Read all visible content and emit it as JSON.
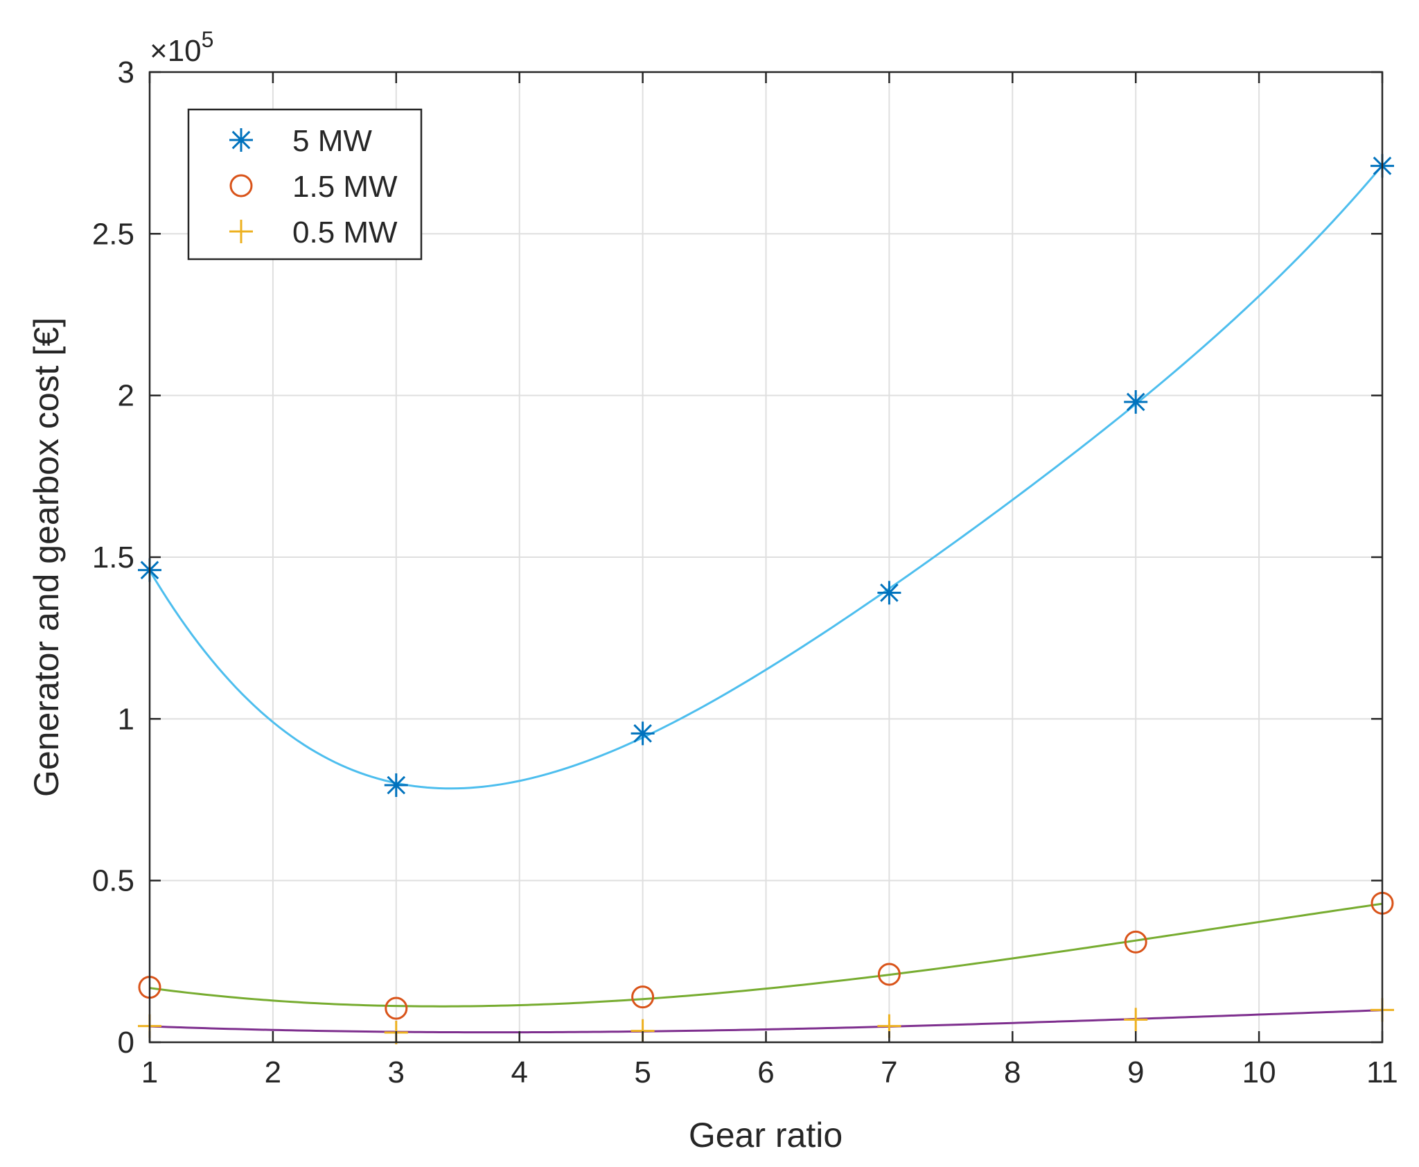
{
  "chart_data": {
    "type": "line",
    "title": "",
    "xlabel": "Gear ratio",
    "ylabel": "Generator and gearbox cost [€]",
    "exponent_label": {
      "prefix": "×10",
      "power": "5"
    },
    "xlim": [
      1,
      11
    ],
    "ylim": [
      0,
      3
    ],
    "y_multiplier": 100000,
    "xticks": [
      1,
      2,
      3,
      4,
      5,
      6,
      7,
      8,
      9,
      10,
      11
    ],
    "yticks": [
      0,
      0.5,
      1,
      1.5,
      2,
      2.5,
      3
    ],
    "ytick_labels": [
      "0",
      "0.5",
      "1",
      "1.5",
      "2",
      "2.5",
      "3"
    ],
    "grid": true,
    "legend_position": "top-left",
    "x": [
      1,
      3,
      5,
      7,
      9,
      11
    ],
    "series": [
      {
        "name": "5 MW",
        "marker": "asterisk",
        "marker_color": "#0072BD",
        "fit_color": "#4DBEEE",
        "values": [
          1.46,
          0.795,
          0.955,
          1.39,
          1.98,
          2.71
        ]
      },
      {
        "name": "1.5 MW",
        "marker": "circle",
        "marker_color": "#D95319",
        "fit_color": "#77AC30",
        "values": [
          0.17,
          0.105,
          0.14,
          0.21,
          0.31,
          0.43
        ]
      },
      {
        "name": "0.5 MW",
        "marker": "plus",
        "marker_color": "#EDB120",
        "fit_color": "#7E2F8E",
        "values": [
          0.05,
          0.03,
          0.035,
          0.05,
          0.07,
          0.1
        ]
      }
    ]
  }
}
